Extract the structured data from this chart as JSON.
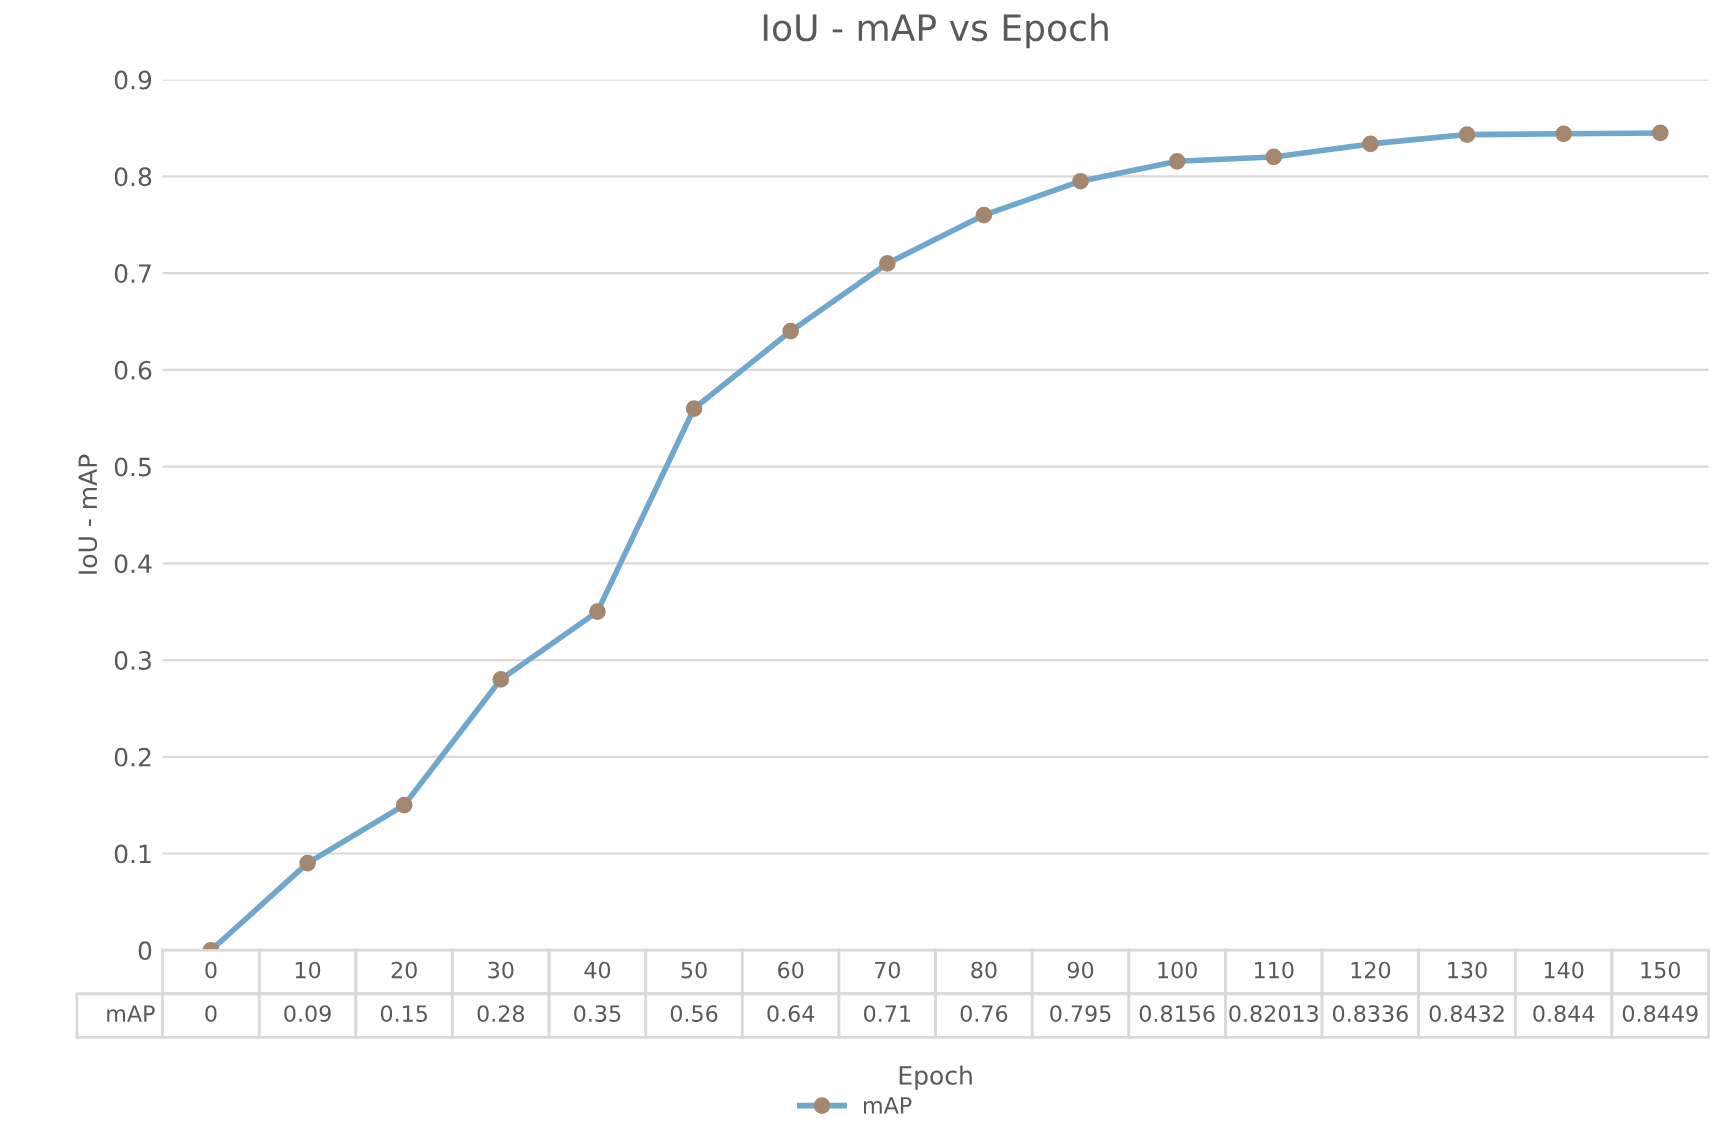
{
  "chart_data": {
    "type": "line",
    "title": "IoU - mAP vs Epoch",
    "xlabel": "Epoch",
    "ylabel": "IoU - mAP",
    "categories": [
      "0",
      "10",
      "20",
      "30",
      "40",
      "50",
      "60",
      "70",
      "80",
      "90",
      "100",
      "110",
      "120",
      "130",
      "140",
      "150"
    ],
    "series": [
      {
        "name": "mAP",
        "color": "#6fa8cc",
        "values": [
          0,
          0.09,
          0.15,
          0.28,
          0.35,
          0.56,
          0.64,
          0.71,
          0.76,
          0.795,
          0.8156,
          0.82013,
          0.8336,
          0.8432,
          0.844,
          0.8449
        ]
      }
    ],
    "ylim": [
      0,
      0.9
    ],
    "yticks": [
      0,
      0.1,
      0.2,
      0.3,
      0.4,
      0.5,
      0.6,
      0.7,
      0.8,
      0.9
    ],
    "grid": "y",
    "marker": "circle",
    "data_labels": true,
    "legend": "bottom"
  }
}
